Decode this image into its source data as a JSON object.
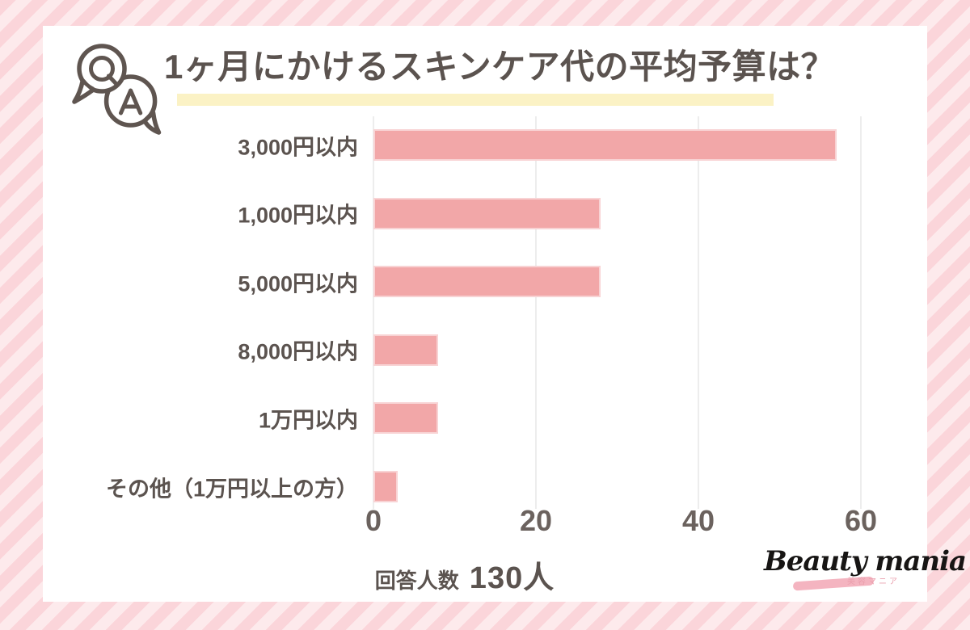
{
  "header": {
    "title": "1ヶ月にかけるスキンケア代の平均予算は？",
    "icon": "qa-speech-bubbles"
  },
  "chart_data": {
    "type": "bar",
    "orientation": "horizontal",
    "title": "1ヶ月にかけるスキンケア代の平均予算は？",
    "categories": [
      "3,000円以内",
      "1,000円以内",
      "5,000円以内",
      "8,000円以内",
      "1万円以内",
      "その他（1万円以上の方）"
    ],
    "values": [
      57,
      28,
      28,
      8,
      8,
      3
    ],
    "x_ticks": [
      0,
      20,
      40,
      60
    ],
    "xlim": [
      0,
      66
    ],
    "xlabel": "",
    "ylabel": "",
    "grid": true,
    "legend": false
  },
  "footer": {
    "respondents_label": "回答人数",
    "respondents_value": "130人"
  },
  "logo": {
    "name": "Beauty mania",
    "subtitle": "美容マニア"
  },
  "colors": {
    "ink": "#5b534f",
    "bar": "#f2a7a8",
    "bar_border": "#f8d3d4",
    "grid": "#ededed",
    "highlight": "#fbf2c5",
    "stripe_dark": "#fbd5da",
    "stripe_light": "#fdeaec",
    "brush": "#f4b4c0",
    "sub_pink": "#ea9fad"
  }
}
